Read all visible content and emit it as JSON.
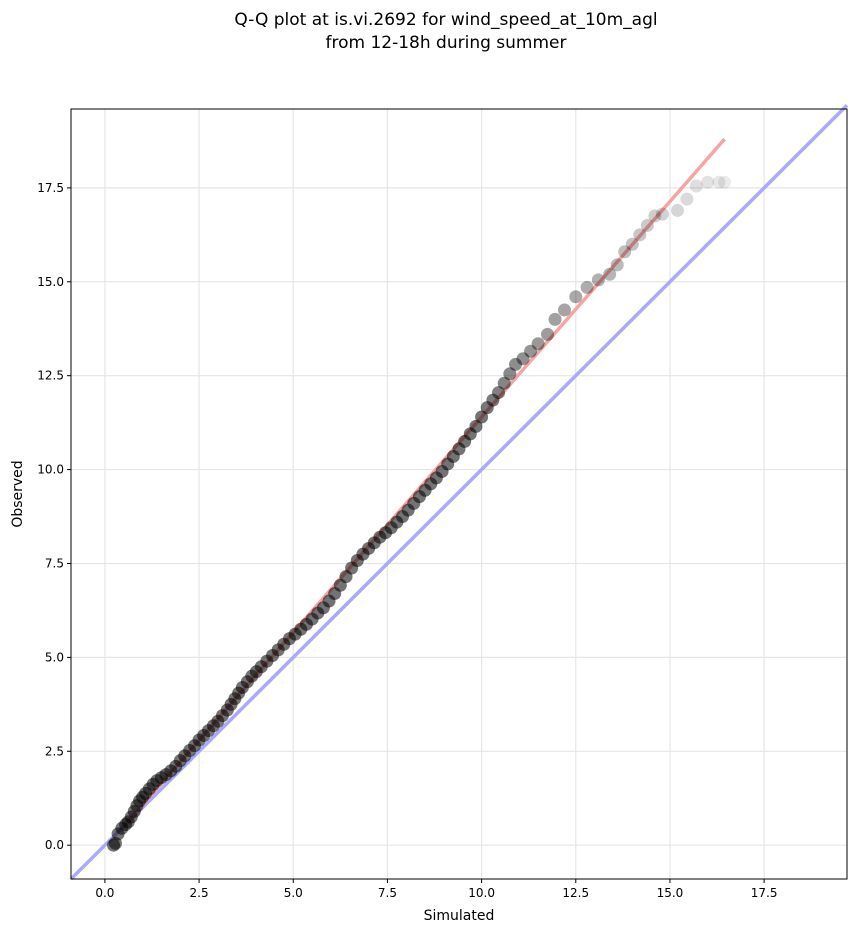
{
  "chart_data": {
    "type": "scatter",
    "title_line1": "Q-Q plot at is.vi.2692 for wind_speed_at_10m_agl",
    "title_line2": "from 12-18h during summer",
    "xlabel": "Simulated",
    "ylabel": "Observed",
    "xlim": [
      -0.9,
      19.7
    ],
    "ylim": [
      -0.9,
      19.6
    ],
    "xticks": [
      0.0,
      2.5,
      5.0,
      7.5,
      10.0,
      12.5,
      15.0,
      17.5
    ],
    "yticks": [
      0.0,
      2.5,
      5.0,
      7.5,
      10.0,
      12.5,
      15.0,
      17.5
    ],
    "xtick_labels": [
      "0.0",
      "2.5",
      "5.0",
      "7.5",
      "10.0",
      "12.5",
      "15.0",
      "17.5"
    ],
    "ytick_labels": [
      "0.0",
      "2.5",
      "5.0",
      "7.5",
      "10.0",
      "12.5",
      "15.0",
      "17.5"
    ],
    "grid": true,
    "identity_line": {
      "color": "#aaaaf5",
      "x": [
        -0.9,
        19.7
      ],
      "y": [
        -0.9,
        19.7
      ]
    },
    "fit_line": {
      "color": "#f5a5a5",
      "x": [
        0.5,
        16.45
      ],
      "y": [
        0.5,
        18.8
      ]
    },
    "points_color": "#000000",
    "points": [
      [
        0.23,
        0.0
      ],
      [
        0.28,
        0.05
      ],
      [
        0.35,
        0.3
      ],
      [
        0.45,
        0.45
      ],
      [
        0.55,
        0.55
      ],
      [
        0.62,
        0.62
      ],
      [
        0.7,
        0.75
      ],
      [
        0.78,
        0.9
      ],
      [
        0.85,
        1.05
      ],
      [
        0.92,
        1.18
      ],
      [
        1.0,
        1.28
      ],
      [
        1.08,
        1.38
      ],
      [
        1.18,
        1.5
      ],
      [
        1.28,
        1.62
      ],
      [
        1.38,
        1.72
      ],
      [
        1.5,
        1.8
      ],
      [
        1.62,
        1.88
      ],
      [
        1.75,
        1.98
      ],
      [
        1.88,
        2.1
      ],
      [
        2.0,
        2.25
      ],
      [
        2.12,
        2.38
      ],
      [
        2.25,
        2.52
      ],
      [
        2.38,
        2.65
      ],
      [
        2.5,
        2.8
      ],
      [
        2.62,
        2.92
      ],
      [
        2.75,
        3.05
      ],
      [
        2.88,
        3.18
      ],
      [
        3.0,
        3.3
      ],
      [
        3.12,
        3.45
      ],
      [
        3.25,
        3.6
      ],
      [
        3.35,
        3.75
      ],
      [
        3.45,
        3.9
      ],
      [
        3.55,
        4.05
      ],
      [
        3.65,
        4.2
      ],
      [
        3.78,
        4.35
      ],
      [
        3.9,
        4.5
      ],
      [
        4.02,
        4.62
      ],
      [
        4.15,
        4.75
      ],
      [
        4.3,
        4.9
      ],
      [
        4.45,
        5.05
      ],
      [
        4.6,
        5.2
      ],
      [
        4.75,
        5.35
      ],
      [
        4.9,
        5.5
      ],
      [
        5.05,
        5.62
      ],
      [
        5.2,
        5.75
      ],
      [
        5.35,
        5.88
      ],
      [
        5.5,
        6.02
      ],
      [
        5.65,
        6.18
      ],
      [
        5.8,
        6.32
      ],
      [
        5.95,
        6.5
      ],
      [
        6.1,
        6.7
      ],
      [
        6.25,
        6.92
      ],
      [
        6.4,
        7.15
      ],
      [
        6.55,
        7.38
      ],
      [
        6.7,
        7.58
      ],
      [
        6.85,
        7.75
      ],
      [
        7.0,
        7.9
      ],
      [
        7.15,
        8.05
      ],
      [
        7.3,
        8.2
      ],
      [
        7.45,
        8.32
      ],
      [
        7.6,
        8.45
      ],
      [
        7.75,
        8.6
      ],
      [
        7.9,
        8.75
      ],
      [
        8.05,
        8.92
      ],
      [
        8.2,
        9.1
      ],
      [
        8.35,
        9.28
      ],
      [
        8.5,
        9.45
      ],
      [
        8.65,
        9.62
      ],
      [
        8.8,
        9.78
      ],
      [
        8.95,
        9.95
      ],
      [
        9.1,
        10.15
      ],
      [
        9.25,
        10.35
      ],
      [
        9.4,
        10.55
      ],
      [
        9.55,
        10.75
      ],
      [
        9.7,
        10.95
      ],
      [
        9.85,
        11.15
      ],
      [
        10.0,
        11.4
      ],
      [
        10.15,
        11.65
      ],
      [
        10.3,
        11.85
      ],
      [
        10.45,
        12.05
      ],
      [
        10.6,
        12.3
      ],
      [
        10.75,
        12.55
      ],
      [
        10.9,
        12.8
      ],
      [
        11.1,
        12.95
      ],
      [
        11.3,
        13.15
      ],
      [
        11.5,
        13.35
      ],
      [
        11.75,
        13.6
      ],
      [
        11.95,
        14.0
      ],
      [
        12.2,
        14.25
      ],
      [
        12.5,
        14.6
      ],
      [
        12.8,
        14.85
      ],
      [
        13.1,
        15.05
      ],
      [
        13.4,
        15.2
      ],
      [
        13.6,
        15.45
      ],
      [
        13.8,
        15.8
      ],
      [
        14.0,
        16.0
      ],
      [
        14.2,
        16.25
      ],
      [
        14.4,
        16.5
      ],
      [
        14.6,
        16.75
      ],
      [
        14.8,
        16.8
      ],
      [
        15.2,
        16.9
      ],
      [
        15.45,
        17.2
      ],
      [
        15.7,
        17.55
      ],
      [
        16.0,
        17.65
      ],
      [
        16.3,
        17.65
      ],
      [
        16.45,
        17.65
      ]
    ]
  }
}
